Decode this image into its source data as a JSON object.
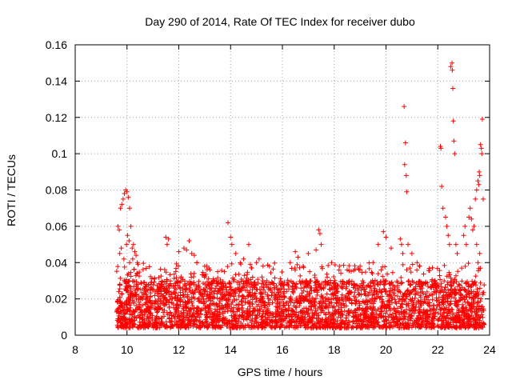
{
  "chart_data": {
    "type": "scatter",
    "title": "Day 290 of 2014, Rate Of TEC Index for receiver dubo",
    "xlabel": "GPS time / hours",
    "ylabel": "ROTI / TECUs",
    "xlim": [
      8,
      24
    ],
    "ylim": [
      0,
      0.16
    ],
    "xticks": [
      8,
      10,
      12,
      14,
      16,
      18,
      20,
      22,
      24
    ],
    "yticks": [
      0,
      0.02,
      0.04,
      0.06,
      0.08,
      0.1,
      0.12,
      0.14,
      0.16
    ],
    "ytick_labels": [
      "0",
      "0.02",
      "0.04",
      "0.06",
      "0.08",
      "0.1",
      "0.12",
      "0.14",
      "0.16"
    ],
    "grid": true,
    "marker": "+",
    "marker_color": "#ff0000",
    "baseline_band": {
      "x_start": 9.6,
      "x_end": 23.8,
      "y_min": 0.004,
      "y_max": 0.03
    },
    "series": [
      {
        "name": "ROTI",
        "x": [
          9.65,
          9.7,
          9.75,
          9.8,
          9.85,
          9.9,
          9.95,
          10.0,
          10.05,
          10.1,
          10.15,
          9.72,
          9.78,
          9.88,
          9.98,
          10.02,
          10.08,
          10.2,
          10.25,
          10.3,
          10.35,
          10.4,
          10.1,
          10.22,
          11.5,
          11.6,
          11.55,
          12.0,
          12.2,
          12.3,
          12.4,
          12.5,
          12.6,
          12.7,
          13.0,
          13.2,
          13.5,
          13.9,
          14.0,
          14.05,
          14.2,
          14.5,
          14.7,
          15.0,
          15.1,
          15.5,
          16.3,
          16.5,
          16.6,
          17.0,
          17.4,
          17.45,
          17.5,
          17.3,
          17.9,
          18.2,
          18.5,
          19.0,
          19.5,
          19.7,
          19.9,
          20.0,
          20.2,
          20.55,
          20.6,
          20.65,
          20.7,
          20.75,
          20.72,
          20.78,
          20.8,
          20.85,
          21.0,
          21.2,
          21.3,
          22.1,
          22.12,
          22.15,
          22.2,
          22.3,
          22.35,
          22.4,
          22.45,
          22.5,
          22.55,
          22.56,
          22.58,
          22.6,
          22.62,
          22.65,
          22.7,
          22.75,
          23.0,
          23.05,
          23.1,
          23.2,
          23.25,
          23.3,
          23.35,
          23.4,
          23.45,
          23.5,
          23.55,
          23.58,
          23.6,
          23.62,
          23.65,
          23.68,
          23.7,
          23.72,
          23.75,
          23.5,
          23.55,
          23.62
        ],
        "y": [
          0.06,
          0.058,
          0.07,
          0.072,
          0.075,
          0.078,
          0.08,
          0.079,
          0.076,
          0.07,
          0.06,
          0.045,
          0.048,
          0.042,
          0.05,
          0.055,
          0.052,
          0.048,
          0.05,
          0.046,
          0.044,
          0.04,
          0.04,
          0.042,
          0.054,
          0.053,
          0.05,
          0.046,
          0.048,
          0.047,
          0.052,
          0.045,
          0.044,
          0.04,
          0.038,
          0.036,
          0.035,
          0.062,
          0.054,
          0.05,
          0.045,
          0.042,
          0.05,
          0.04,
          0.042,
          0.038,
          0.04,
          0.046,
          0.043,
          0.045,
          0.058,
          0.056,
          0.05,
          0.047,
          0.04,
          0.038,
          0.036,
          0.038,
          0.04,
          0.05,
          0.057,
          0.054,
          0.048,
          0.053,
          0.05,
          0.045,
          0.126,
          0.106,
          0.094,
          0.088,
          0.079,
          0.05,
          0.045,
          0.04,
          0.038,
          0.104,
          0.103,
          0.082,
          0.07,
          0.065,
          0.06,
          0.055,
          0.05,
          0.148,
          0.15,
          0.146,
          0.136,
          0.118,
          0.107,
          0.1,
          0.05,
          0.045,
          0.055,
          0.06,
          0.05,
          0.065,
          0.07,
          0.064,
          0.058,
          0.06,
          0.075,
          0.08,
          0.085,
          0.083,
          0.09,
          0.088,
          0.105,
          0.103,
          0.1,
          0.119,
          0.075,
          0.05,
          0.04,
          0.045
        ]
      }
    ]
  }
}
